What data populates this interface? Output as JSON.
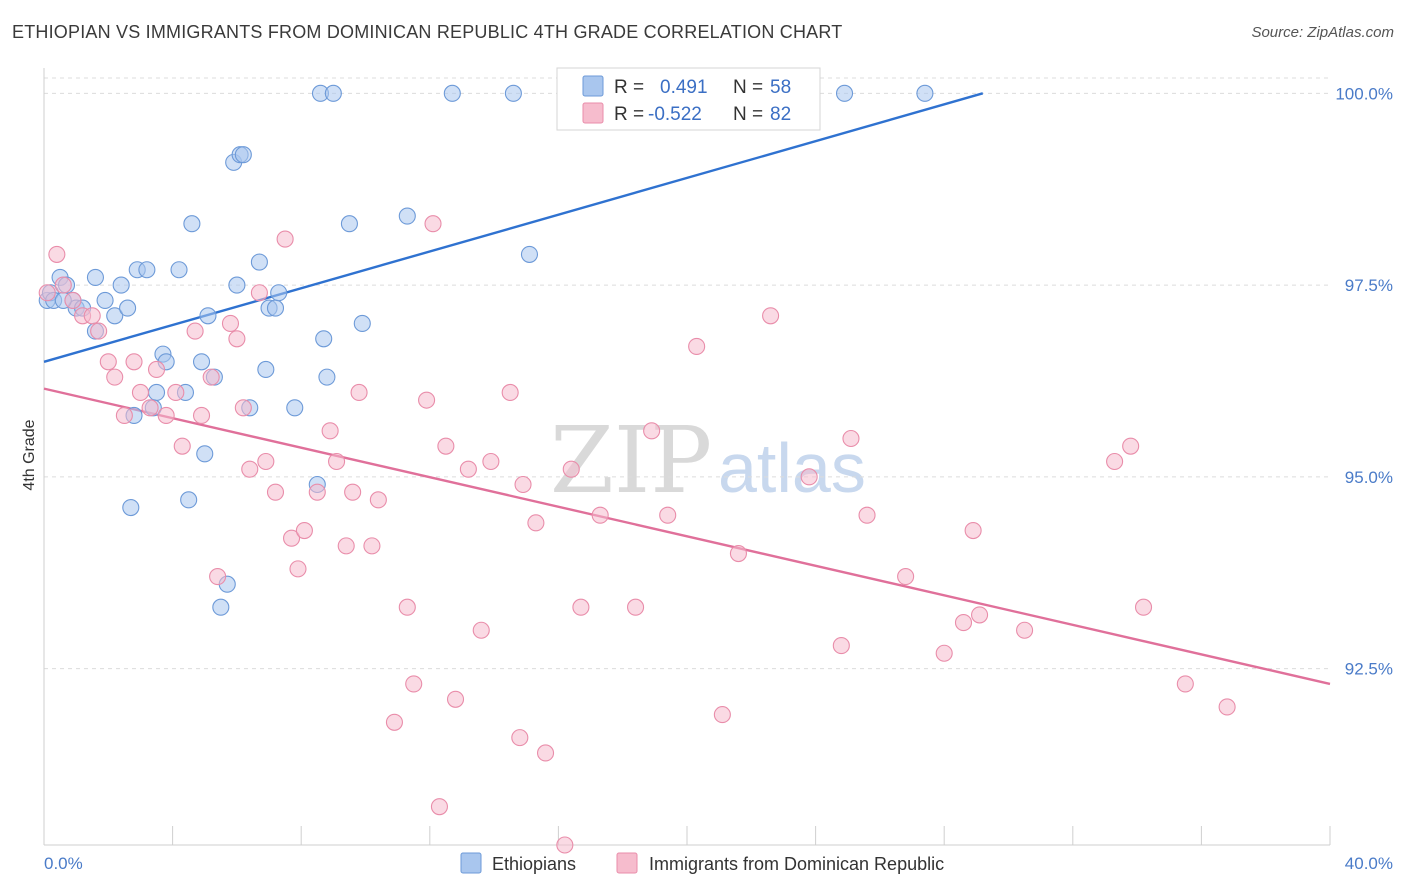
{
  "title": "ETHIOPIAN VS IMMIGRANTS FROM DOMINICAN REPUBLIC 4TH GRADE CORRELATION CHART",
  "source": "Source: ZipAtlas.com",
  "watermark": {
    "part1": "ZIP",
    "part2": "atlas"
  },
  "legend": {
    "r_label": "R =",
    "n_label": "N =",
    "rows": [
      {
        "r": "0.491",
        "n": "58"
      },
      {
        "r": "-0.522",
        "n": "82"
      }
    ]
  },
  "colors": {
    "blue_fill": "#a9c6ee",
    "blue_stroke": "#6d9ad8",
    "blue_line": "#2f72d0",
    "pink_fill": "#f6bccd",
    "pink_stroke": "#e98daa",
    "pink_line": "#e0709a",
    "grid": "#dcdcdc",
    "axis_text": "#4a7bc8"
  },
  "chart_data": {
    "type": "scatter",
    "title": "ETHIOPIAN VS IMMIGRANTS FROM DOMINICAN REPUBLIC 4TH GRADE CORRELATION CHART",
    "xlabel": "",
    "ylabel": "4th Grade",
    "xlim": [
      0,
      40
    ],
    "ylim": [
      90.2,
      100.2
    ],
    "x_tick_labels": [
      "0.0%",
      "40.0%"
    ],
    "y_ticks": [
      92.5,
      95.0,
      97.5,
      100.0
    ],
    "y_tick_labels": [
      "92.5%",
      "95.0%",
      "97.5%",
      "100.0%"
    ],
    "grid": true,
    "legend_position": "top-center",
    "series": [
      {
        "name": "Ethiopians",
        "color": "#a9c6ee",
        "trend": {
          "x": [
            0,
            29.2
          ],
          "y": [
            96.5,
            100.0
          ]
        },
        "points": [
          [
            0.1,
            97.3
          ],
          [
            0.2,
            97.4
          ],
          [
            0.3,
            97.3
          ],
          [
            0.5,
            97.6
          ],
          [
            0.7,
            97.5
          ],
          [
            0.9,
            97.3
          ],
          [
            1.0,
            97.2
          ],
          [
            1.2,
            97.2
          ],
          [
            1.6,
            96.9
          ],
          [
            1.9,
            97.3
          ],
          [
            2.2,
            97.1
          ],
          [
            2.4,
            97.5
          ],
          [
            2.6,
            97.2
          ],
          [
            2.9,
            97.7
          ],
          [
            3.2,
            97.7
          ],
          [
            3.5,
            96.1
          ],
          [
            3.7,
            96.6
          ],
          [
            3.8,
            96.5
          ],
          [
            4.2,
            97.7
          ],
          [
            4.4,
            96.1
          ],
          [
            4.5,
            94.7
          ],
          [
            4.6,
            98.3
          ],
          [
            4.9,
            96.5
          ],
          [
            5.0,
            95.3
          ],
          [
            5.1,
            97.1
          ],
          [
            5.3,
            96.3
          ],
          [
            5.5,
            93.3
          ],
          [
            5.7,
            93.6
          ],
          [
            5.9,
            99.1
          ],
          [
            6.0,
            97.5
          ],
          [
            6.1,
            99.2
          ],
          [
            6.2,
            99.2
          ],
          [
            6.4,
            95.9
          ],
          [
            6.7,
            97.8
          ],
          [
            6.9,
            96.4
          ],
          [
            7.0,
            97.2
          ],
          [
            7.2,
            97.2
          ],
          [
            7.3,
            97.4
          ],
          [
            7.8,
            95.9
          ],
          [
            8.5,
            94.9
          ],
          [
            8.6,
            100.0
          ],
          [
            8.7,
            96.8
          ],
          [
            8.8,
            96.3
          ],
          [
            9.0,
            100.0
          ],
          [
            9.5,
            98.3
          ],
          [
            9.9,
            97.0
          ],
          [
            11.3,
            98.4
          ],
          [
            12.7,
            100.0
          ],
          [
            14.6,
            100.0
          ],
          [
            15.1,
            97.9
          ],
          [
            20.6,
            100.0
          ],
          [
            24.9,
            100.0
          ],
          [
            27.4,
            100.0
          ],
          [
            2.7,
            94.6
          ],
          [
            1.6,
            97.6
          ],
          [
            0.6,
            97.3
          ],
          [
            2.8,
            95.8
          ],
          [
            3.4,
            95.9
          ]
        ]
      },
      {
        "name": "Immigrants from Dominican Republic",
        "color": "#f6bccd",
        "trend": {
          "x": [
            0,
            40
          ],
          "y": [
            96.15,
            92.3
          ]
        },
        "points": [
          [
            0.1,
            97.4
          ],
          [
            0.4,
            97.9
          ],
          [
            0.6,
            97.5
          ],
          [
            0.9,
            97.3
          ],
          [
            1.2,
            97.1
          ],
          [
            1.5,
            97.1
          ],
          [
            1.7,
            96.9
          ],
          [
            2.0,
            96.5
          ],
          [
            2.2,
            96.3
          ],
          [
            2.5,
            95.8
          ],
          [
            2.8,
            96.5
          ],
          [
            3.0,
            96.1
          ],
          [
            3.3,
            95.9
          ],
          [
            3.5,
            96.4
          ],
          [
            3.8,
            95.8
          ],
          [
            4.1,
            96.1
          ],
          [
            4.3,
            95.4
          ],
          [
            4.7,
            96.9
          ],
          [
            4.9,
            95.8
          ],
          [
            5.2,
            96.3
          ],
          [
            5.4,
            93.7
          ],
          [
            5.8,
            97.0
          ],
          [
            6.0,
            96.8
          ],
          [
            6.2,
            95.9
          ],
          [
            6.4,
            95.1
          ],
          [
            6.7,
            97.4
          ],
          [
            6.9,
            95.2
          ],
          [
            7.2,
            94.8
          ],
          [
            7.5,
            98.1
          ],
          [
            7.7,
            94.2
          ],
          [
            7.9,
            93.8
          ],
          [
            8.1,
            94.3
          ],
          [
            8.5,
            94.8
          ],
          [
            8.9,
            95.6
          ],
          [
            9.1,
            95.2
          ],
          [
            9.4,
            94.1
          ],
          [
            9.6,
            94.8
          ],
          [
            9.8,
            96.1
          ],
          [
            10.2,
            94.1
          ],
          [
            10.4,
            94.7
          ],
          [
            10.9,
            91.8
          ],
          [
            11.3,
            93.3
          ],
          [
            11.5,
            92.3
          ],
          [
            11.9,
            96.0
          ],
          [
            12.1,
            98.3
          ],
          [
            12.3,
            90.7
          ],
          [
            12.5,
            95.4
          ],
          [
            12.8,
            92.1
          ],
          [
            13.2,
            95.1
          ],
          [
            13.6,
            93.0
          ],
          [
            13.9,
            95.2
          ],
          [
            14.5,
            96.1
          ],
          [
            14.8,
            91.6
          ],
          [
            14.9,
            94.9
          ],
          [
            15.3,
            94.4
          ],
          [
            15.6,
            91.4
          ],
          [
            16.2,
            90.2
          ],
          [
            16.4,
            95.1
          ],
          [
            16.7,
            93.3
          ],
          [
            17.3,
            94.5
          ],
          [
            18.4,
            93.3
          ],
          [
            18.9,
            95.6
          ],
          [
            19.4,
            94.5
          ],
          [
            20.3,
            96.7
          ],
          [
            21.1,
            91.9
          ],
          [
            21.6,
            94.0
          ],
          [
            22.6,
            97.1
          ],
          [
            23.8,
            95.0
          ],
          [
            24.8,
            92.8
          ],
          [
            25.1,
            95.5
          ],
          [
            25.6,
            94.5
          ],
          [
            26.8,
            93.7
          ],
          [
            28.0,
            92.7
          ],
          [
            28.6,
            93.1
          ],
          [
            28.9,
            94.3
          ],
          [
            29.1,
            93.2
          ],
          [
            30.5,
            93.0
          ],
          [
            33.3,
            95.2
          ],
          [
            33.8,
            95.4
          ],
          [
            34.2,
            93.3
          ],
          [
            35.5,
            92.3
          ],
          [
            36.8,
            92.0
          ]
        ]
      }
    ]
  },
  "bottom_legend": [
    "Ethiopians",
    "Immigrants from Dominican Republic"
  ]
}
